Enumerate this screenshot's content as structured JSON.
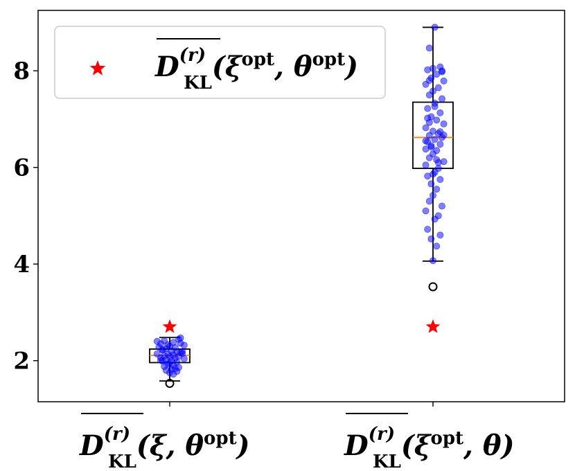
{
  "chart_data": {
    "type": "box",
    "title": "",
    "xlabel": "",
    "ylabel": "",
    "ylim": [
      1.15,
      9.25
    ],
    "yticks": [
      "2",
      "4",
      "6",
      "8"
    ],
    "ytick_values": [
      2,
      4,
      6,
      8
    ],
    "grid": false,
    "legend": {
      "placement": "upper-left",
      "entries": [
        {
          "marker": "star",
          "color": "#ff0000",
          "label": {
            "bar": "D",
            "sup": "(r)",
            "sub": "KL",
            "args": "(ξ",
            "args_sup": "opt",
            "args2": ", θ",
            "args2_sup": "opt",
            "close": ")"
          }
        }
      ]
    },
    "categories": [
      {
        "bar": "D",
        "sup": "(r)",
        "sub": "KL",
        "args": "(ξ, θ",
        "args_sup": "opt",
        "args2": "",
        "args2_sup": "",
        "close": ")"
      },
      {
        "bar": "D",
        "sup": "(r)",
        "sub": "KL",
        "args": "(ξ",
        "args_sup": "opt",
        "args2": ", θ",
        "args2_sup": "",
        "close": ")"
      }
    ],
    "boxes": [
      {
        "q1": 1.96,
        "median": 2.11,
        "q3": 2.24,
        "whisker_low": 1.58,
        "whisker_high": 2.48,
        "outliers": [
          1.53
        ]
      },
      {
        "q1": 5.98,
        "median": 6.62,
        "q3": 7.35,
        "whisker_low": 4.06,
        "whisker_high": 8.9,
        "outliers": [
          3.53
        ]
      }
    ],
    "optimum_markers": [
      2.7,
      2.7
    ],
    "points_color": "#0000ff",
    "median_color": "#ff7f0e",
    "scatter": [
      {
        "x": [
          0.97,
          1.02,
          0.95,
          1.05,
          1.08,
          0.93,
          1.0,
          1.03,
          0.98,
          1.06,
          0.96,
          1.01,
          1.04,
          0.94,
          1.07,
          0.99,
          1.02,
          0.97,
          1.05,
          1.0,
          0.95,
          1.03,
          1.08,
          0.98,
          1.01,
          0.96,
          1.04,
          0.93,
          1.06,
          1.0,
          0.99,
          1.02,
          0.97,
          1.05,
          1.03,
          0.95,
          1.01,
          1.07,
          0.98,
          1.04,
          1.0,
          0.96,
          1.02,
          0.99,
          1.06
        ],
        "y": [
          2.41,
          2.38,
          2.35,
          2.44,
          2.32,
          2.4,
          2.3,
          2.27,
          2.25,
          2.36,
          2.22,
          2.2,
          2.18,
          2.28,
          2.15,
          2.13,
          2.12,
          2.1,
          2.09,
          2.08,
          2.06,
          2.05,
          2.04,
          2.02,
          2.0,
          1.99,
          1.97,
          2.14,
          2.17,
          1.95,
          1.93,
          1.9,
          1.88,
          1.86,
          1.84,
          2.01,
          1.82,
          2.19,
          1.8,
          1.78,
          1.75,
          2.23,
          1.72,
          2.33,
          2.47
        ]
      },
      {
        "x": [
          2.01,
          1.98,
          2.04,
          2.0,
          1.97,
          2.05,
          2.02,
          1.99,
          2.06,
          1.96,
          2.03,
          2.0,
          1.98,
          2.05,
          2.01,
          1.97,
          2.04,
          1.99,
          2.02,
          2.06,
          1.96,
          2.0,
          2.03,
          1.98,
          2.05,
          2.01,
          1.97,
          2.04,
          1.99,
          2.02,
          2.0,
          1.98,
          2.06,
          1.96,
          2.03,
          2.01,
          1.97,
          2.04,
          1.99,
          2.02,
          2.0,
          1.98,
          2.05,
          1.96,
          2.03,
          2.01,
          1.97,
          2.04,
          1.99,
          2.02,
          2.0,
          1.98,
          2.06,
          1.96,
          2.03,
          2.01,
          1.97,
          2.04,
          1.99,
          2.02,
          2.0,
          1.98,
          2.05,
          1.96
        ],
        "y": [
          8.9,
          8.47,
          8.08,
          8.05,
          8.02,
          7.98,
          7.93,
          7.85,
          7.79,
          7.72,
          7.65,
          7.58,
          7.5,
          7.42,
          7.33,
          7.22,
          7.13,
          7.05,
          6.98,
          6.9,
          6.82,
          6.75,
          6.7,
          6.66,
          6.62,
          6.58,
          6.53,
          6.48,
          6.42,
          6.35,
          6.28,
          6.2,
          6.12,
          6.05,
          5.98,
          5.9,
          5.82,
          5.75,
          5.66,
          5.55,
          5.42,
          5.3,
          5.2,
          5.1,
          5.0,
          4.93,
          4.72,
          4.6,
          4.52,
          4.37,
          4.07,
          6.93,
          6.67,
          6.38,
          6.1,
          7.26,
          7.02,
          6.74,
          6.45,
          6.16,
          5.86,
          7.8,
          8.0,
          6.55
        ]
      }
    ]
  }
}
